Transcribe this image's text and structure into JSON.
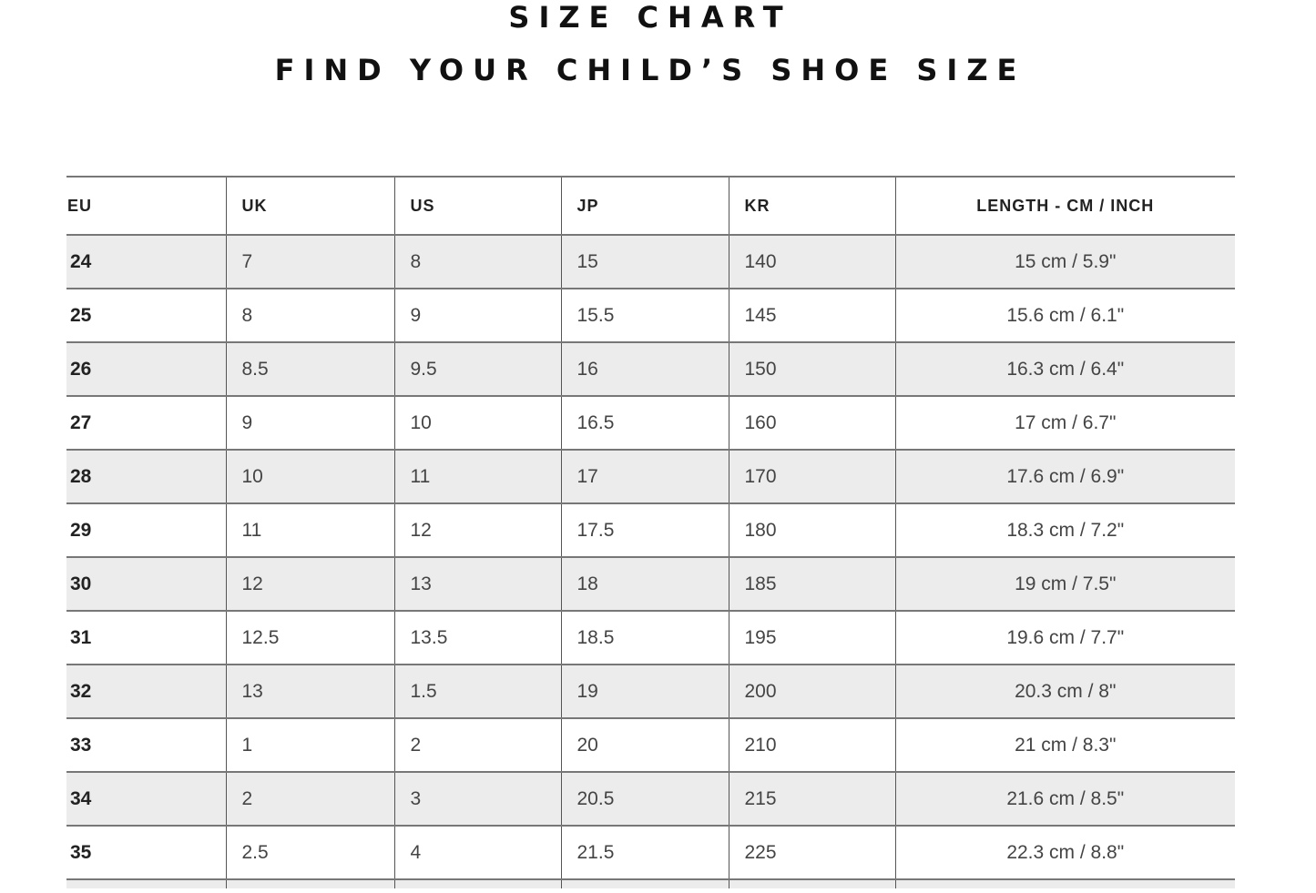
{
  "title": "SIZE CHART",
  "subtitle": "FIND YOUR CHILD’S SHOE SIZE",
  "table": {
    "headers": [
      "EU",
      "UK",
      "US",
      "JP",
      "KR",
      "LENGTH - CM / INCH"
    ],
    "rows": [
      [
        "24",
        "7",
        "8",
        "15",
        "140",
        "15 cm / 5.9\""
      ],
      [
        "25",
        "8",
        "9",
        "15.5",
        "145",
        "15.6 cm / 6.1\""
      ],
      [
        "26",
        "8.5",
        "9.5",
        "16",
        "150",
        "16.3 cm / 6.4\""
      ],
      [
        "27",
        "9",
        "10",
        "16.5",
        "160",
        "17 cm / 6.7\""
      ],
      [
        "28",
        "10",
        "11",
        "17",
        "170",
        "17.6 cm / 6.9\""
      ],
      [
        "29",
        "11",
        "12",
        "17.5",
        "180",
        "18.3 cm / 7.2\""
      ],
      [
        "30",
        "12",
        "13",
        "18",
        "185",
        "19 cm / 7.5\""
      ],
      [
        "31",
        "12.5",
        "13.5",
        "18.5",
        "195",
        "19.6 cm / 7.7\""
      ],
      [
        "32",
        "13",
        "1.5",
        "19",
        "200",
        "20.3 cm / 8\""
      ],
      [
        "33",
        "1",
        "2",
        "20",
        "210",
        "21 cm / 8.3\""
      ],
      [
        "34",
        "2",
        "3",
        "20.5",
        "215",
        "21.6 cm / 8.5\""
      ],
      [
        "35",
        "2.5",
        "4",
        "21.5",
        "225",
        "22.3 cm / 8.8\""
      ]
    ]
  }
}
